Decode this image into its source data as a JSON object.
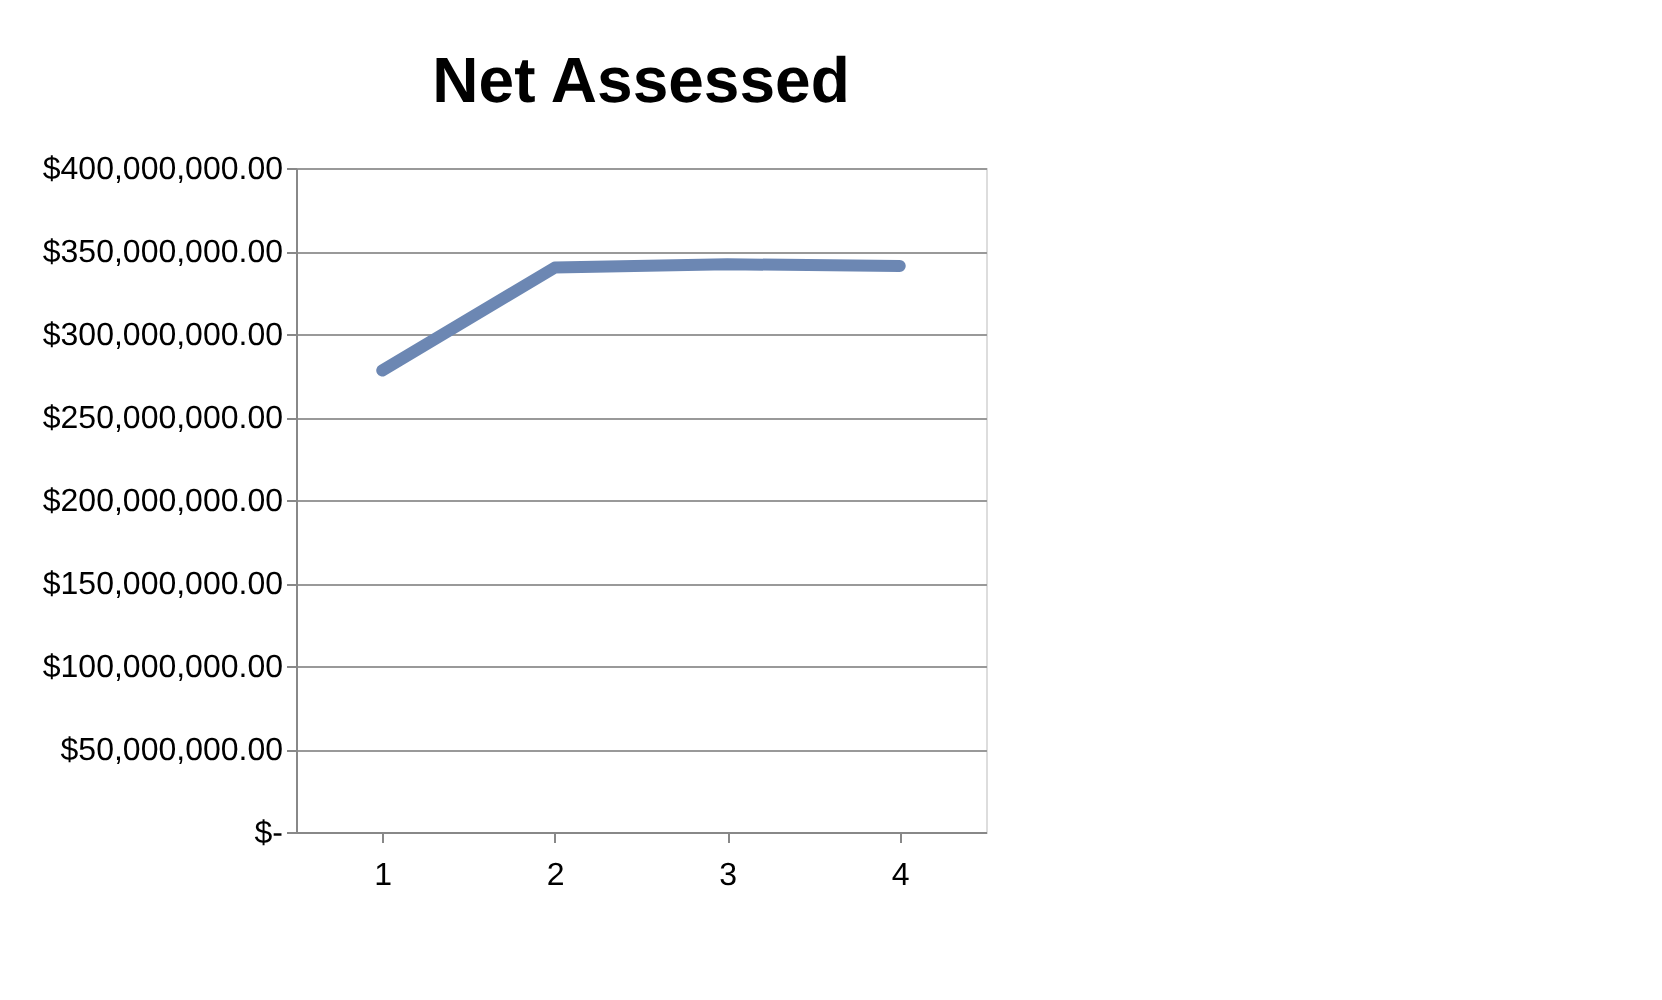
{
  "chart_data": {
    "type": "line",
    "title": "Net Assessed",
    "categories": [
      "1",
      "2",
      "3",
      "4"
    ],
    "series": [
      {
        "color": "#6c87b3",
        "values": [
          278000000,
          340000000,
          342000000,
          341000000
        ]
      }
    ],
    "ylim": [
      0,
      400000000
    ],
    "yticks": [
      {
        "value": 0,
        "label": "$-"
      },
      {
        "value": 50000000,
        "label": "$50,000,000.00"
      },
      {
        "value": 100000000,
        "label": "$100,000,000.00"
      },
      {
        "value": 150000000,
        "label": "$150,000,000.00"
      },
      {
        "value": 200000000,
        "label": "$200,000,000.00"
      },
      {
        "value": 250000000,
        "label": "$250,000,000.00"
      },
      {
        "value": 300000000,
        "label": "$300,000,000.00"
      },
      {
        "value": 350000000,
        "label": "$350,000,000.00"
      },
      {
        "value": 400000000,
        "label": "$400,000,000.00"
      }
    ],
    "grid": "y",
    "marker": "none",
    "line_style": "solid"
  }
}
